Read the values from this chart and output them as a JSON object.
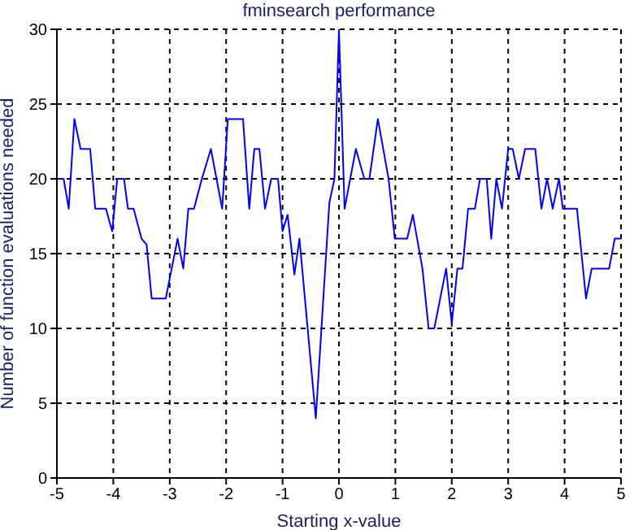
{
  "chart_data": {
    "type": "line",
    "title": "fminsearch performance",
    "xlabel": "Starting x-value",
    "ylabel": "Number of function evaluations needed",
    "xlim": [
      -5,
      5
    ],
    "xticks": [
      -5,
      -4,
      -3,
      -2,
      -1,
      0,
      1,
      2,
      3,
      4,
      5
    ],
    "ylim": [
      0,
      30
    ],
    "yticks": [
      0,
      5,
      10,
      15,
      20,
      25,
      30
    ],
    "grid": true,
    "marker": "none",
    "line_style": "solid",
    "series": [
      {
        "color": "#0000ff",
        "x": [
          -5,
          -4.88,
          -4.79,
          -4.69,
          -4.58,
          -4.41,
          -4.32,
          -4.13,
          -4.02,
          -3.93,
          -3.81,
          -3.74,
          -3.64,
          -3.5,
          -3.41,
          -3.32,
          -3.07,
          -2.86,
          -2.76,
          -2.67,
          -2.57,
          -2.43,
          -2.27,
          -2.07,
          -1.97,
          -1.7,
          -1.59,
          -1.5,
          -1.41,
          -1.31,
          -1.2,
          -1.08,
          -1.0,
          -0.91,
          -0.79,
          -0.7,
          -0.41,
          -0.17,
          -0.08,
          0,
          0.1,
          0.3,
          0.45,
          0.54,
          0.69,
          0.88,
          0.99,
          1.21,
          1.31,
          1.48,
          1.59,
          1.69,
          1.9,
          2.0,
          2.1,
          2.19,
          2.29,
          2.41,
          2.5,
          2.62,
          2.7,
          2.79,
          2.89,
          3.0,
          3.08,
          3.19,
          3.3,
          3.48,
          3.59,
          3.69,
          3.79,
          3.9,
          3.97,
          4.22,
          4.38,
          4.48,
          4.79,
          4.89,
          5
        ],
        "values": [
          20,
          20,
          18,
          24,
          22,
          22,
          18,
          18,
          16.5,
          20,
          20,
          18,
          18,
          16,
          15.6,
          12,
          12,
          16,
          14,
          18,
          18,
          20,
          22,
          18,
          24,
          24,
          18,
          22,
          22,
          18,
          20,
          20,
          16.5,
          17.6,
          13.6,
          16,
          4,
          18.4,
          20,
          30,
          18,
          22,
          20,
          20,
          24,
          20,
          16,
          16,
          17.6,
          14,
          10,
          10,
          14,
          10.3,
          14,
          14,
          18,
          18,
          20,
          20,
          16,
          20,
          18,
          22,
          22,
          20,
          22,
          22,
          18,
          20,
          18,
          20,
          18,
          18,
          12,
          14,
          14,
          16,
          16
        ]
      }
    ]
  }
}
